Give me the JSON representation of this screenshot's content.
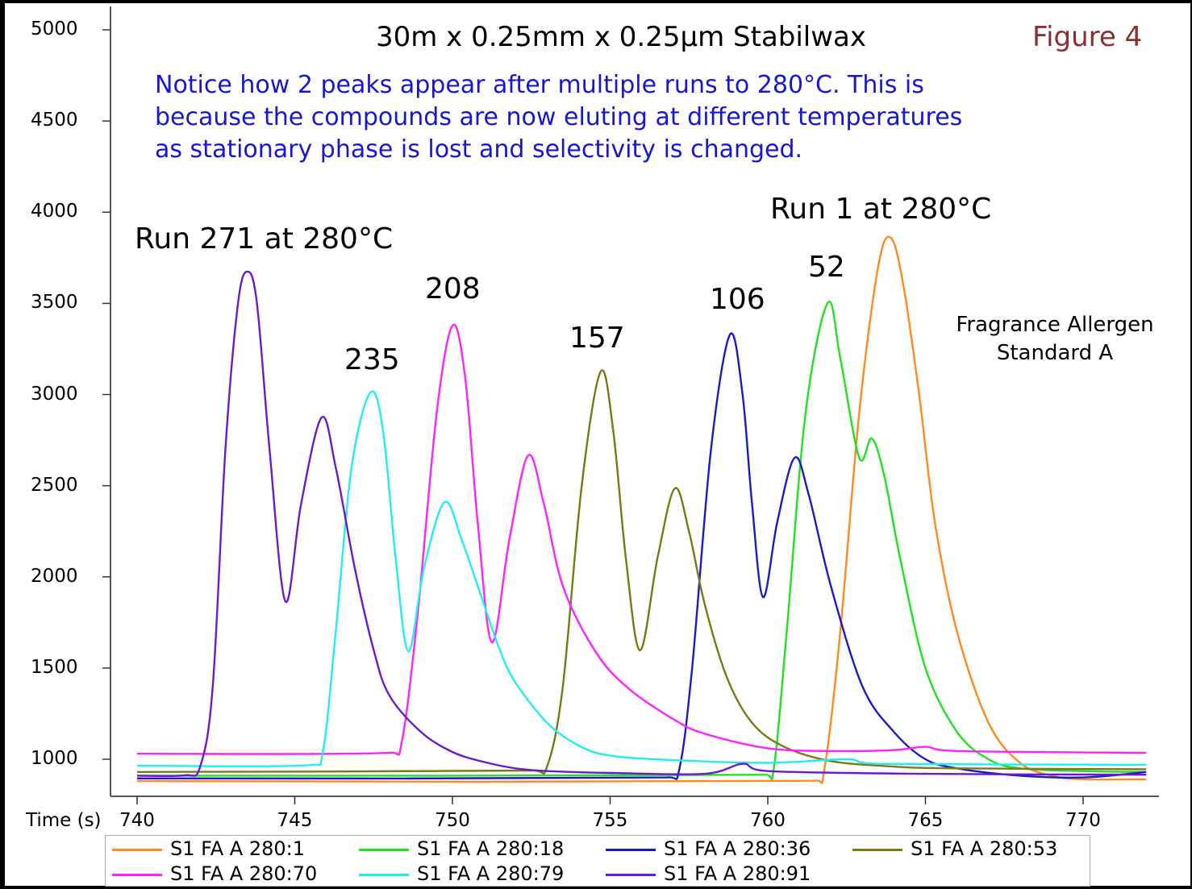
{
  "chart_data": {
    "type": "line",
    "title": "30m x 0.25mm x 0.25µm Stabilwax",
    "figure_label": "Figure 4",
    "xlabel": "Time (s)",
    "ylabel": "",
    "xlim": [
      738,
      772.4
    ],
    "ylim": [
      797,
      5000
    ],
    "x_ticks": [
      "740",
      "745",
      "750",
      "755",
      "760",
      "765",
      "770"
    ],
    "y_ticks": [
      "5000",
      "4500",
      "4000",
      "3500",
      "3000",
      "2500",
      "2000",
      "1500",
      "1000"
    ],
    "grid": false,
    "legend_position": "bottom",
    "annotations": {
      "note": [
        "Notice how 2 peaks appear after multiple runs to 280°C.  This is",
        "because the compounds are now eluting at different temperatures",
        "as stationary phase is lost and selectivity is changed."
      ],
      "run_last": "Run 271 at 280°C",
      "run_first": "Run 1 at 280°C",
      "run_235": "235",
      "run_208": "208",
      "run_157": "157",
      "run_106": "106",
      "run_52": "52",
      "sample": [
        "Fragrance Allergen",
        "Standard A"
      ]
    },
    "series": [
      {
        "name": "S1 FA A 280:1",
        "color": "#ff8a1e",
        "points": [
          [
            740,
            880
          ],
          [
            761.5,
            882
          ],
          [
            761.8,
            950
          ],
          [
            762.3,
            1700
          ],
          [
            762.9,
            2900
          ],
          [
            763.5,
            3700
          ],
          [
            763.9,
            3860
          ],
          [
            764.3,
            3600
          ],
          [
            764.8,
            3000
          ],
          [
            765.3,
            2300
          ],
          [
            766,
            1700
          ],
          [
            767,
            1200
          ],
          [
            768,
            980
          ],
          [
            769,
            910
          ],
          [
            770,
            890
          ],
          [
            772,
            890
          ]
        ]
      },
      {
        "name": "S1 FA A 280:18",
        "color": "#22e022",
        "points": [
          [
            740,
            910
          ],
          [
            759.9,
            915
          ],
          [
            760.2,
            960
          ],
          [
            760.6,
            1700
          ],
          [
            761.2,
            2900
          ],
          [
            761.9,
            3502
          ],
          [
            762.3,
            3200
          ],
          [
            762.9,
            2653
          ],
          [
            763.3,
            2759
          ],
          [
            763.7,
            2550
          ],
          [
            764.2,
            2100
          ],
          [
            765,
            1500
          ],
          [
            766,
            1150
          ],
          [
            767,
            1000
          ],
          [
            768,
            950
          ],
          [
            770,
            935
          ],
          [
            772,
            930
          ]
        ]
      },
      {
        "name": "S1 FA A 280:36",
        "color": "#1a1acc",
        "points": [
          [
            740,
            895
          ],
          [
            756.8,
            900
          ],
          [
            757.2,
            950
          ],
          [
            757.6,
            1500
          ],
          [
            758.2,
            2700
          ],
          [
            758.8,
            3329
          ],
          [
            759.2,
            3000
          ],
          [
            759.5,
            2400
          ],
          [
            759.85,
            1889
          ],
          [
            760.3,
            2300
          ],
          [
            760.85,
            2653
          ],
          [
            761.3,
            2450
          ],
          [
            762,
            1950
          ],
          [
            763,
            1400
          ],
          [
            764,
            1150
          ],
          [
            765,
            1000
          ],
          [
            766,
            950
          ],
          [
            768,
            910
          ],
          [
            770,
            900
          ],
          [
            772,
            930
          ]
        ]
      },
      {
        "name": "S1 FA A 280:53",
        "color": "#7a7a12",
        "points": [
          [
            740,
            930
          ],
          [
            752.5,
            938
          ],
          [
            753,
            960
          ],
          [
            753.5,
            1400
          ],
          [
            754.1,
            2500
          ],
          [
            754.7,
            3126
          ],
          [
            755.1,
            2800
          ],
          [
            755.5,
            2100
          ],
          [
            755.95,
            1597
          ],
          [
            756.5,
            2100
          ],
          [
            757.05,
            2485
          ],
          [
            757.5,
            2250
          ],
          [
            758,
            1850
          ],
          [
            758.7,
            1450
          ],
          [
            759.5,
            1200
          ],
          [
            760.5,
            1070
          ],
          [
            762,
            990
          ],
          [
            764,
            960
          ],
          [
            766,
            950
          ],
          [
            772,
            945
          ]
        ]
      },
      {
        "name": "S1 FA A 280:70",
        "color": "#ff22ff",
        "points": [
          [
            740,
            1030
          ],
          [
            748,
            1035
          ],
          [
            748.4,
            1100
          ],
          [
            748.9,
            1800
          ],
          [
            749.5,
            2900
          ],
          [
            750,
            3378
          ],
          [
            750.4,
            3100
          ],
          [
            750.8,
            2300
          ],
          [
            751.25,
            1641
          ],
          [
            751.8,
            2200
          ],
          [
            752.4,
            2666
          ],
          [
            752.9,
            2400
          ],
          [
            753.5,
            1950
          ],
          [
            754.5,
            1600
          ],
          [
            755.5,
            1400
          ],
          [
            757,
            1220
          ],
          [
            758,
            1140
          ],
          [
            760,
            1060
          ],
          [
            762,
            1045
          ],
          [
            764,
            1050
          ],
          [
            765,
            1068
          ],
          [
            766,
            1045
          ],
          [
            772,
            1035
          ]
        ]
      },
      {
        "name": "S1 FA A 280:79",
        "color": "#22eeee",
        "points": [
          [
            740,
            965
          ],
          [
            745.5,
            968
          ],
          [
            745.9,
            1050
          ],
          [
            746.3,
            1700
          ],
          [
            746.8,
            2600
          ],
          [
            747.4,
            3011
          ],
          [
            747.8,
            2800
          ],
          [
            748.2,
            2100
          ],
          [
            748.6,
            1592
          ],
          [
            749.1,
            2050
          ],
          [
            749.75,
            2410
          ],
          [
            750.3,
            2200
          ],
          [
            750.9,
            1900
          ],
          [
            751.5,
            1600
          ],
          [
            752,
            1420
          ],
          [
            753,
            1200
          ],
          [
            754,
            1075
          ],
          [
            755,
            1020
          ],
          [
            757,
            995
          ],
          [
            760,
            980
          ],
          [
            762.5,
            1000
          ],
          [
            763.5,
            975
          ],
          [
            772,
            970
          ]
        ]
      },
      {
        "name": "S1 FA A 280:91",
        "color": "#6a1ad0",
        "points": [
          [
            740,
            910
          ],
          [
            741.5,
            912
          ],
          [
            742,
            960
          ],
          [
            742.4,
            1400
          ],
          [
            742.8,
            2700
          ],
          [
            743.2,
            3500
          ],
          [
            743.5,
            3674
          ],
          [
            743.8,
            3500
          ],
          [
            744.2,
            2700
          ],
          [
            744.7,
            1866
          ],
          [
            745.2,
            2400
          ],
          [
            745.85,
            2874
          ],
          [
            746.3,
            2600
          ],
          [
            746.9,
            2050
          ],
          [
            747.5,
            1600
          ],
          [
            748,
            1350
          ],
          [
            749,
            1150
          ],
          [
            750,
            1040
          ],
          [
            751,
            985
          ],
          [
            752,
            950
          ],
          [
            753,
            935
          ],
          [
            755,
            925
          ],
          [
            758,
            920
          ],
          [
            759.2,
            975
          ],
          [
            760,
            935
          ],
          [
            765,
            920
          ],
          [
            772,
            915
          ]
        ]
      }
    ]
  }
}
